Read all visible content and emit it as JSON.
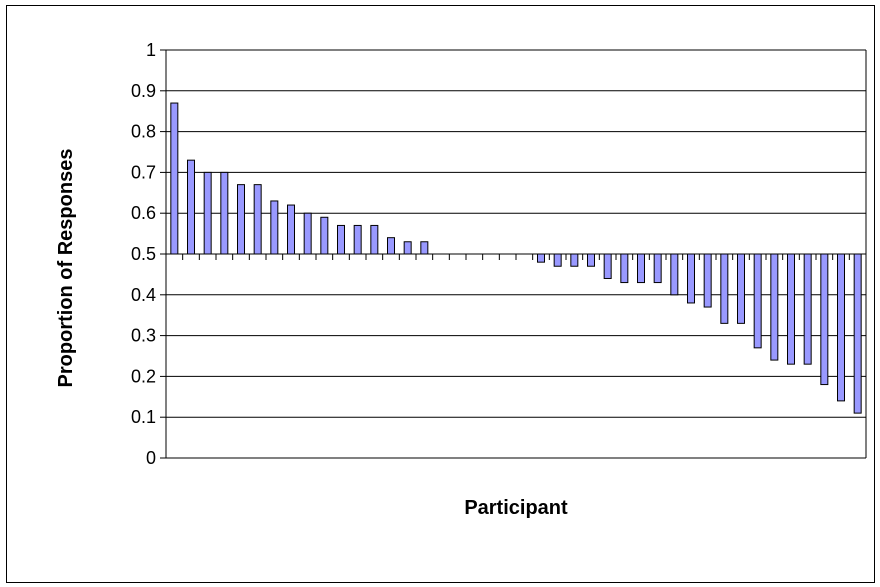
{
  "chart_data": {
    "type": "bar",
    "title": "",
    "xlabel": "Participant",
    "ylabel": "Proportion of Responses",
    "ylim": [
      0,
      1
    ],
    "yticks": [
      "0",
      "0.1",
      "0.2",
      "0.3",
      "0.4",
      "0.5",
      "0.6",
      "0.7",
      "0.8",
      "0.9",
      "1"
    ],
    "baseline": 0.5,
    "grid": true,
    "legend": "none",
    "bar_color": "#9999ff",
    "bar_edge_color": "#000000",
    "values": [
      0.87,
      0.73,
      0.7,
      0.7,
      0.67,
      0.67,
      0.63,
      0.62,
      0.6,
      0.59,
      0.57,
      0.57,
      0.57,
      0.54,
      0.53,
      0.53,
      0.5,
      0.5,
      0.5,
      0.5,
      0.5,
      0.5,
      0.48,
      0.47,
      0.47,
      0.47,
      0.44,
      0.43,
      0.43,
      0.43,
      0.4,
      0.38,
      0.37,
      0.33,
      0.33,
      0.27,
      0.24,
      0.23,
      0.23,
      0.18,
      0.14,
      0.11
    ]
  }
}
